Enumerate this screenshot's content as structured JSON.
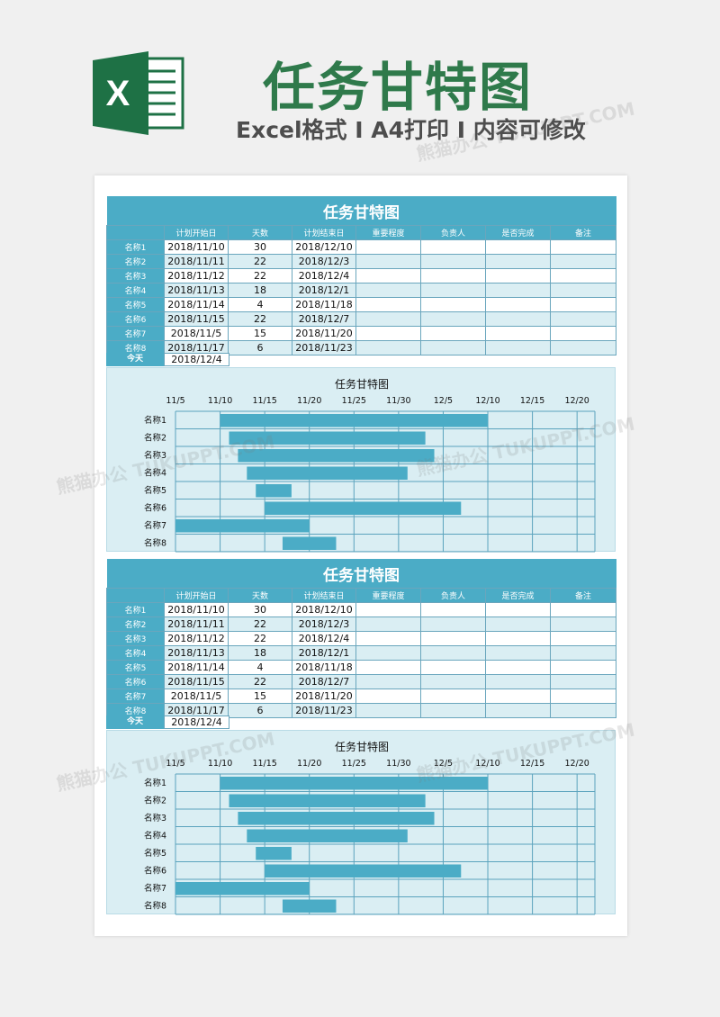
{
  "header": {
    "title": "任务甘特图",
    "subtitle": "Excel格式 I A4打印 I 内容可修改",
    "logo_letter": "X"
  },
  "watermark": "熊猫办公 TUKUPPT.COM",
  "colors": {
    "accent": "#4bacc6",
    "light": "#daeef3",
    "grid": "#5ba3bd",
    "brand_green": "#2f7a4b"
  },
  "sheet": {
    "title": "任务甘特图",
    "columns": [
      "计划开始日",
      "天数",
      "计划结束日",
      "重要程度",
      "负责人",
      "是否完成",
      "备注"
    ],
    "rows": [
      {
        "name": "名称1",
        "start": "2018/11/10",
        "days": "30",
        "end": "2018/12/10"
      },
      {
        "name": "名称2",
        "start": "2018/11/11",
        "days": "22",
        "end": "2018/12/3"
      },
      {
        "name": "名称3",
        "start": "2018/11/12",
        "days": "22",
        "end": "2018/12/4"
      },
      {
        "name": "名称4",
        "start": "2018/11/13",
        "days": "18",
        "end": "2018/12/1"
      },
      {
        "name": "名称5",
        "start": "2018/11/14",
        "days": "4",
        "end": "2018/11/18"
      },
      {
        "name": "名称6",
        "start": "2018/11/15",
        "days": "22",
        "end": "2018/12/7"
      },
      {
        "name": "名称7",
        "start": "2018/11/5",
        "days": "15",
        "end": "2018/11/20"
      },
      {
        "name": "名称8",
        "start": "2018/11/17",
        "days": "6",
        "end": "2018/11/23"
      }
    ],
    "today_label": "今天",
    "today_value": "2018/12/4"
  },
  "chart_data": {
    "type": "bar",
    "orientation": "horizontal-gantt",
    "title": "任务甘特图",
    "x_ticks": [
      "11/5",
      "11/10",
      "11/15",
      "11/20",
      "11/25",
      "11/30",
      "12/5",
      "12/10",
      "12/15",
      "12/20"
    ],
    "xlim": [
      "2018/11/5",
      "2018/12/22"
    ],
    "categories": [
      "名称1",
      "名称2",
      "名称3",
      "名称4",
      "名称5",
      "名称6",
      "名称7",
      "名称8"
    ],
    "start": [
      "2018/11/10",
      "2018/11/11",
      "2018/11/12",
      "2018/11/13",
      "2018/11/14",
      "2018/11/15",
      "2018/11/5",
      "2018/11/17"
    ],
    "duration_days": [
      30,
      22,
      22,
      18,
      4,
      22,
      15,
      6
    ],
    "grid": true,
    "bar_color": "#4bacc6"
  }
}
